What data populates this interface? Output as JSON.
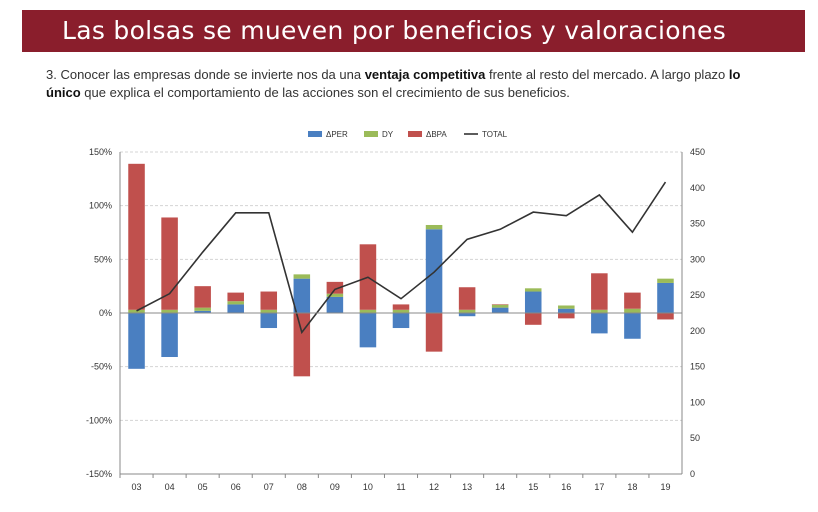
{
  "header": {
    "title": "Las bolsas se mueven por beneficios y valoraciones"
  },
  "intro": {
    "p1": "3. Conocer las empresas donde se invierte nos da una ",
    "b1": "ventaja competitiva",
    "p2": " frente al resto del mercado. A largo plazo ",
    "b2": "lo único",
    "p3": " que explica el comportamiento de las acciones son el crecimiento de sus beneficios."
  },
  "colors": {
    "per": "#4a7fc1",
    "dy": "#9bbb59",
    "bpa": "#c0504d",
    "total": "#333333"
  },
  "chart_data": {
    "type": "bar",
    "stacked": true,
    "categories": [
      "03",
      "04",
      "05",
      "06",
      "07",
      "08",
      "09",
      "10",
      "11",
      "12",
      "13",
      "14",
      "15",
      "16",
      "17",
      "18",
      "19"
    ],
    "series": [
      {
        "name": "ΔPER",
        "axis": "left",
        "values": [
          -0.52,
          -0.41,
          0.02,
          0.08,
          -0.14,
          0.32,
          0.15,
          -0.32,
          -0.14,
          0.78,
          -0.03,
          0.05,
          0.2,
          0.04,
          -0.19,
          -0.24,
          0.28
        ]
      },
      {
        "name": "DY",
        "axis": "left",
        "values": [
          0.03,
          0.03,
          0.03,
          0.03,
          0.03,
          0.04,
          0.03,
          0.03,
          0.03,
          0.04,
          0.03,
          0.03,
          0.03,
          0.03,
          0.03,
          0.04,
          0.04
        ]
      },
      {
        "name": "ΔBPA",
        "axis": "left",
        "values": [
          1.36,
          0.86,
          0.2,
          0.08,
          0.17,
          -0.59,
          0.11,
          0.61,
          0.05,
          -0.36,
          0.21,
          0.0,
          -0.11,
          -0.05,
          0.34,
          0.15,
          -0.06
        ]
      },
      {
        "name": "TOTAL",
        "axis": "right",
        "type": "line",
        "values": [
          228,
          252,
          310,
          365,
          365,
          198,
          258,
          275,
          245,
          282,
          328,
          342,
          366,
          361,
          390,
          338,
          408
        ]
      }
    ],
    "legend": [
      "ΔPER",
      "DY",
      "ΔBPA",
      "TOTAL"
    ],
    "ylim": [
      -1.5,
      1.5
    ],
    "yticks": [
      "-150%",
      "-100%",
      "-50%",
      "0%",
      "50%",
      "100%",
      "150%"
    ],
    "y2lim": [
      0,
      450
    ],
    "y2ticks": [
      "0",
      "50",
      "100",
      "150",
      "200",
      "250",
      "300",
      "350",
      "400",
      "450"
    ],
    "legend_position": "top-center",
    "grid": true
  }
}
